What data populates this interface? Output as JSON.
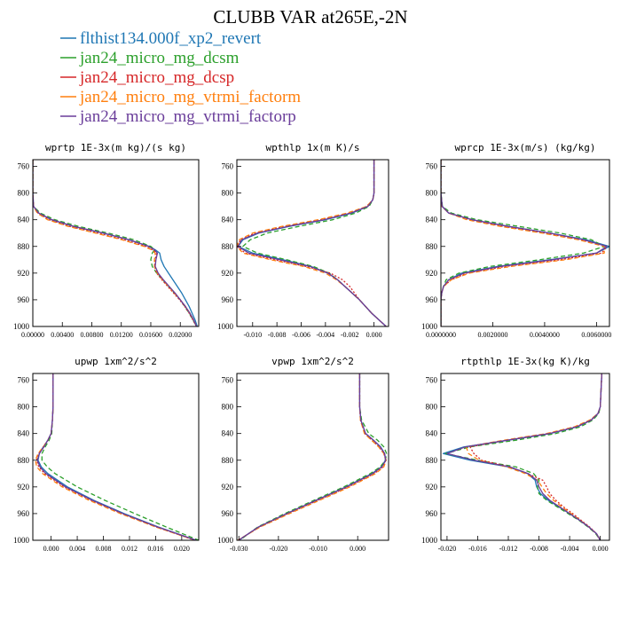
{
  "figure": {
    "title": "CLUBB VAR at265E,-2N",
    "legend": [
      {
        "label": "flthist134.000f_xp2_revert",
        "color": "#1f77b4",
        "dash": "solid"
      },
      {
        "label": "jan24_micro_mg_dcsm",
        "color": "#2ca02c",
        "dash": "dashed"
      },
      {
        "label": "jan24_micro_mg_dcsp",
        "color": "#d62728",
        "dash": "dotted"
      },
      {
        "label": "jan24_micro_mg_vtrmi_factorm",
        "color": "#ff7f0e",
        "dash": "dashed"
      },
      {
        "label": "jan24_micro_mg_vtrmi_factorp",
        "color": "#6a3d9a",
        "dash": "solid"
      }
    ]
  },
  "chart_data": [
    {
      "type": "line",
      "title": "wprtp  1E-3x(m kg)/(s kg)",
      "xlim": [
        0.0,
        0.0225
      ],
      "ylim": [
        1000,
        750
      ],
      "xticks": [
        0.0,
        0.004,
        0.008,
        0.012,
        0.016,
        0.02
      ],
      "xtick_labels": [
        "0.00000",
        "0.00400",
        "0.00800",
        "0.01200",
        "0.01600",
        "0.02000"
      ],
      "yticks": [
        760,
        800,
        840,
        880,
        920,
        960,
        1000
      ],
      "ytick_labels": [
        "760",
        "800",
        "840",
        "880",
        "920",
        "960",
        "1000"
      ],
      "y": [
        750,
        800,
        820,
        830,
        840,
        850,
        860,
        870,
        880,
        885,
        890,
        900,
        910,
        920,
        930,
        940,
        950,
        960,
        970,
        980,
        990,
        1000
      ],
      "series": [
        {
          "values": [
            0,
            0,
            0.0001,
            0.0008,
            0.0025,
            0.0055,
            0.0095,
            0.013,
            0.0158,
            0.0166,
            0.0172,
            0.0174,
            0.0178,
            0.0184,
            0.019,
            0.0196,
            0.0202,
            0.0207,
            0.0212,
            0.0216,
            0.022,
            0.0223
          ]
        },
        {
          "values": [
            0,
            0,
            0.0001,
            0.001,
            0.003,
            0.0062,
            0.0102,
            0.0137,
            0.016,
            0.0165,
            0.0162,
            0.016,
            0.0162,
            0.0168,
            0.0176,
            0.0184,
            0.0192,
            0.02,
            0.0206,
            0.0212,
            0.0217,
            0.0222
          ]
        },
        {
          "values": [
            0,
            0,
            0.0001,
            0.0007,
            0.0022,
            0.005,
            0.0088,
            0.0124,
            0.0153,
            0.0162,
            0.0168,
            0.0166,
            0.0165,
            0.0168,
            0.0175,
            0.0183,
            0.0191,
            0.0199,
            0.0206,
            0.0212,
            0.0217,
            0.0222
          ]
        },
        {
          "values": [
            0,
            0,
            0.0001,
            0.0006,
            0.002,
            0.0048,
            0.0085,
            0.0121,
            0.0151,
            0.0161,
            0.0166,
            0.0165,
            0.0165,
            0.0169,
            0.0176,
            0.0184,
            0.0192,
            0.02,
            0.0207,
            0.0213,
            0.0218,
            0.0222
          ]
        },
        {
          "values": [
            0,
            0,
            0.0001,
            0.0008,
            0.0026,
            0.0056,
            0.0096,
            0.0131,
            0.0157,
            0.0165,
            0.0169,
            0.0167,
            0.0166,
            0.017,
            0.0177,
            0.0185,
            0.0193,
            0.02,
            0.0207,
            0.0213,
            0.0218,
            0.0222
          ]
        }
      ]
    },
    {
      "type": "line",
      "title": "wpthlp  1x(m K)/s",
      "xlim": [
        -0.0113,
        0.0012
      ],
      "ylim": [
        1000,
        750
      ],
      "xticks": [
        -0.01,
        -0.008,
        -0.006,
        -0.004,
        -0.002,
        0.0
      ],
      "xtick_labels": [
        "-0.010",
        "-0.008",
        "-0.006",
        "-0.004",
        "-0.002",
        "0.000"
      ],
      "yticks": [
        760,
        800,
        840,
        880,
        920,
        960,
        1000
      ],
      "ytick_labels": [
        "760",
        "800",
        "840",
        "880",
        "920",
        "960",
        "1000"
      ],
      "y": [
        750,
        800,
        810,
        820,
        830,
        840,
        850,
        860,
        870,
        880,
        890,
        900,
        910,
        920,
        930,
        940,
        950,
        960,
        970,
        980,
        990,
        1000
      ],
      "series": [
        {
          "values": [
            0.0,
            0.0,
            -0.0001,
            -0.0005,
            -0.0018,
            -0.004,
            -0.007,
            -0.0095,
            -0.0108,
            -0.0112,
            -0.01,
            -0.0075,
            -0.0052,
            -0.0038,
            -0.003,
            -0.0024,
            -0.0018,
            -0.0012,
            -0.0007,
            -0.0002,
            0.0004,
            0.001
          ]
        },
        {
          "values": [
            0.0,
            0.0,
            -0.0001,
            -0.0004,
            -0.0015,
            -0.0034,
            -0.0062,
            -0.0088,
            -0.0102,
            -0.0108,
            -0.0096,
            -0.0072,
            -0.005,
            -0.0037,
            -0.003,
            -0.0024,
            -0.0018,
            -0.0012,
            -0.0007,
            -0.0002,
            0.0004,
            0.001
          ]
        },
        {
          "values": [
            0.0,
            0.0,
            -0.0001,
            -0.0006,
            -0.002,
            -0.0044,
            -0.0074,
            -0.0098,
            -0.011,
            -0.0113,
            -0.0106,
            -0.0082,
            -0.0056,
            -0.0036,
            -0.0026,
            -0.002,
            -0.0016,
            -0.0012,
            -0.0007,
            -0.0002,
            0.0004,
            0.001
          ]
        },
        {
          "values": [
            0.0,
            0.0,
            -0.0001,
            -0.0006,
            -0.0022,
            -0.0046,
            -0.0076,
            -0.01,
            -0.0111,
            -0.0113,
            -0.0108,
            -0.0085,
            -0.0058,
            -0.004,
            -0.0031,
            -0.0024,
            -0.0018,
            -0.0012,
            -0.0007,
            -0.0002,
            0.0004,
            0.001
          ]
        },
        {
          "values": [
            0.0,
            0.0,
            -0.0001,
            -0.0005,
            -0.0019,
            -0.0041,
            -0.0071,
            -0.0096,
            -0.0109,
            -0.0112,
            -0.0103,
            -0.0078,
            -0.0053,
            -0.0038,
            -0.003,
            -0.0024,
            -0.0018,
            -0.0012,
            -0.0007,
            -0.0002,
            0.0004,
            0.001
          ]
        }
      ]
    },
    {
      "type": "line",
      "title": "wprcp  1E-3x(m/s) (kg/kg)",
      "xlim": [
        0.0,
        0.0065
      ],
      "ylim": [
        1000,
        750
      ],
      "xticks": [
        0.0,
        0.002,
        0.004,
        0.006
      ],
      "xtick_labels": [
        "0.0000000",
        "0.0020000",
        "0.0040000",
        "0.0060000"
      ],
      "yticks": [
        760,
        800,
        840,
        880,
        920,
        960,
        1000
      ],
      "ytick_labels": [
        "760",
        "800",
        "840",
        "880",
        "920",
        "960",
        "1000"
      ],
      "y": [
        750,
        800,
        820,
        830,
        840,
        850,
        860,
        870,
        880,
        890,
        900,
        910,
        920,
        930,
        940,
        950,
        960,
        970,
        1000
      ],
      "series": [
        {
          "values": [
            0,
            0,
            5e-05,
            0.0003,
            0.0012,
            0.0026,
            0.0042,
            0.0056,
            0.0065,
            0.006,
            0.0042,
            0.0022,
            0.0008,
            0.0003,
            0.0001,
            3e-05,
            0,
            0,
            0
          ]
        },
        {
          "values": [
            0,
            0,
            6e-05,
            0.0004,
            0.0014,
            0.003,
            0.0046,
            0.0058,
            0.0063,
            0.0055,
            0.0038,
            0.0019,
            0.0007,
            0.0002,
            0.0001,
            3e-05,
            0,
            0,
            0
          ]
        },
        {
          "values": [
            0,
            0,
            4e-05,
            0.0003,
            0.0011,
            0.0024,
            0.004,
            0.0054,
            0.0064,
            0.0062,
            0.0046,
            0.0025,
            0.001,
            0.0004,
            0.0001,
            3e-05,
            0,
            0,
            0
          ]
        },
        {
          "values": [
            0,
            0,
            4e-05,
            0.0003,
            0.001,
            0.0023,
            0.0039,
            0.0053,
            0.0063,
            0.0063,
            0.0048,
            0.0027,
            0.0011,
            0.0004,
            0.0001,
            3e-05,
            0,
            0,
            0
          ]
        },
        {
          "values": [
            0,
            0,
            5e-05,
            0.0003,
            0.0012,
            0.0026,
            0.0042,
            0.0055,
            0.0064,
            0.006,
            0.0043,
            0.0023,
            0.0009,
            0.0003,
            0.0001,
            3e-05,
            0,
            0,
            0
          ]
        }
      ]
    },
    {
      "type": "line",
      "title": "upwp  1xm^2/s^2",
      "xlim": [
        -0.0028,
        0.0226
      ],
      "ylim": [
        1000,
        750
      ],
      "xticks": [
        0.0,
        0.004,
        0.008,
        0.012,
        0.016,
        0.02
      ],
      "xtick_labels": [
        "0.000",
        "0.004",
        "0.008",
        "0.012",
        "0.016",
        "0.020"
      ],
      "yticks": [
        760,
        800,
        840,
        880,
        920,
        960,
        1000
      ],
      "ytick_labels": [
        "760",
        "800",
        "840",
        "880",
        "920",
        "960",
        "1000"
      ],
      "y": [
        750,
        800,
        820,
        840,
        850,
        860,
        870,
        880,
        890,
        900,
        920,
        940,
        960,
        980,
        1000
      ],
      "series": [
        {
          "values": [
            0.0003,
            0.0003,
            0.0002,
            0.0,
            -0.0005,
            -0.0012,
            -0.0018,
            -0.002,
            -0.0015,
            -0.0005,
            0.0025,
            0.0065,
            0.0112,
            0.0164,
            0.0222
          ]
        },
        {
          "values": [
            0.0003,
            0.0003,
            0.0002,
            0.0001,
            -0.0003,
            -0.0009,
            -0.0014,
            -0.0014,
            -0.0006,
            0.0006,
            0.004,
            0.0082,
            0.0128,
            0.0176,
            0.0226
          ]
        },
        {
          "values": [
            0.0003,
            0.0003,
            0.0002,
            0.0,
            -0.0005,
            -0.0012,
            -0.0019,
            -0.0022,
            -0.0019,
            -0.001,
            0.002,
            0.0061,
            0.0108,
            0.0161,
            0.022
          ]
        },
        {
          "values": [
            0.0003,
            0.0003,
            0.0002,
            0.0,
            -0.0005,
            -0.0012,
            -0.002,
            -0.0024,
            -0.0022,
            -0.0013,
            0.0017,
            0.0058,
            0.0106,
            0.016,
            0.0221
          ]
        },
        {
          "values": [
            0.0003,
            0.0003,
            0.0002,
            0.0,
            -0.0005,
            -0.0011,
            -0.0018,
            -0.0021,
            -0.0017,
            -0.0008,
            0.0022,
            0.0063,
            0.011,
            0.0163,
            0.0222
          ]
        }
      ]
    },
    {
      "type": "line",
      "title": "vpwp  1xm^2/s^2",
      "xlim": [
        -0.0305,
        0.0078
      ],
      "ylim": [
        1000,
        750
      ],
      "xticks": [
        -0.03,
        -0.02,
        -0.01,
        0.0
      ],
      "xtick_labels": [
        "-0.030",
        "-0.020",
        "-0.010",
        "0.000"
      ],
      "yticks": [
        760,
        800,
        840,
        880,
        920,
        960,
        1000
      ],
      "ytick_labels": [
        "760",
        "800",
        "840",
        "880",
        "920",
        "960",
        "1000"
      ],
      "y": [
        750,
        800,
        820,
        840,
        850,
        860,
        870,
        880,
        890,
        900,
        920,
        940,
        960,
        980,
        1000
      ],
      "series": [
        {
          "values": [
            0.0005,
            0.0005,
            0.0008,
            0.002,
            0.004,
            0.0058,
            0.0068,
            0.007,
            0.006,
            0.0036,
            -0.003,
            -0.0105,
            -0.018,
            -0.025,
            -0.03
          ]
        },
        {
          "values": [
            0.0005,
            0.0005,
            0.001,
            0.0028,
            0.005,
            0.0066,
            0.0073,
            0.007,
            0.0057,
            0.0032,
            -0.0035,
            -0.011,
            -0.0184,
            -0.0252,
            -0.0298
          ]
        },
        {
          "values": [
            0.0005,
            0.0005,
            0.0007,
            0.0018,
            0.0036,
            0.0054,
            0.0066,
            0.0071,
            0.0064,
            0.0042,
            -0.0024,
            -0.01,
            -0.0176,
            -0.0248,
            -0.0302
          ]
        },
        {
          "values": [
            0.0005,
            0.0005,
            0.0007,
            0.0017,
            0.0035,
            0.0053,
            0.0066,
            0.0072,
            0.0066,
            0.0045,
            -0.002,
            -0.0096,
            -0.0172,
            -0.0246,
            -0.0303
          ]
        },
        {
          "values": [
            0.0005,
            0.0005,
            0.0008,
            0.002,
            0.004,
            0.0057,
            0.0068,
            0.0071,
            0.0061,
            0.0038,
            -0.0028,
            -0.0104,
            -0.0179,
            -0.025,
            -0.0301
          ]
        }
      ]
    },
    {
      "type": "line",
      "title": "rtpthlp  1E-3x(kg K)/kg",
      "xlim": [
        -0.0208,
        0.0012
      ],
      "ylim": [
        1000,
        750
      ],
      "xticks": [
        -0.02,
        -0.016,
        -0.012,
        -0.008,
        -0.004,
        0.0
      ],
      "xtick_labels": [
        "-0.020",
        "-0.016",
        "-0.012",
        "-0.008",
        "-0.004",
        "0.000"
      ],
      "yticks": [
        760,
        800,
        840,
        880,
        920,
        960,
        1000
      ],
      "ytick_labels": [
        "760",
        "800",
        "840",
        "880",
        "920",
        "960",
        "1000"
      ],
      "y": [
        750,
        800,
        810,
        820,
        830,
        840,
        850,
        860,
        870,
        880,
        890,
        900,
        910,
        920,
        930,
        940,
        950,
        960,
        970,
        980,
        990,
        1000
      ],
      "series": [
        {
          "values": [
            0.0002,
            0.0,
            -0.0003,
            -0.0012,
            -0.003,
            -0.0065,
            -0.012,
            -0.0178,
            -0.0205,
            -0.017,
            -0.012,
            -0.0095,
            -0.0085,
            -0.0083,
            -0.0078,
            -0.0068,
            -0.0054,
            -0.004,
            -0.0027,
            -0.0015,
            -0.0005,
            0.0
          ]
        },
        {
          "values": [
            0.0002,
            0.0,
            -0.0002,
            -0.001,
            -0.0026,
            -0.0058,
            -0.011,
            -0.017,
            -0.0202,
            -0.016,
            -0.011,
            -0.0087,
            -0.008,
            -0.0082,
            -0.008,
            -0.007,
            -0.0056,
            -0.0042,
            -0.0028,
            -0.0016,
            -0.0006,
            0.0
          ]
        },
        {
          "values": [
            0.0002,
            0.0,
            -0.0003,
            -0.0013,
            -0.0033,
            -0.0068,
            -0.0123,
            -0.017,
            -0.0165,
            -0.0155,
            -0.0118,
            -0.0095,
            -0.0075,
            -0.007,
            -0.0066,
            -0.0058,
            -0.0048,
            -0.0036,
            -0.0025,
            -0.0014,
            -0.0005,
            0.0
          ]
        },
        {
          "values": [
            0.0002,
            0.0,
            -0.0003,
            -0.0014,
            -0.0034,
            -0.007,
            -0.0126,
            -0.0175,
            -0.0172,
            -0.0158,
            -0.0122,
            -0.0098,
            -0.0082,
            -0.0076,
            -0.007,
            -0.0061,
            -0.005,
            -0.0038,
            -0.0026,
            -0.0015,
            -0.0005,
            0.0
          ]
        },
        {
          "values": [
            0.0002,
            0.0,
            -0.0003,
            -0.0012,
            -0.0031,
            -0.0066,
            -0.0121,
            -0.0176,
            -0.02,
            -0.0165,
            -0.0118,
            -0.0094,
            -0.0083,
            -0.008,
            -0.0075,
            -0.0066,
            -0.0053,
            -0.004,
            -0.0027,
            -0.0015,
            -0.0005,
            0.0
          ]
        }
      ]
    }
  ]
}
